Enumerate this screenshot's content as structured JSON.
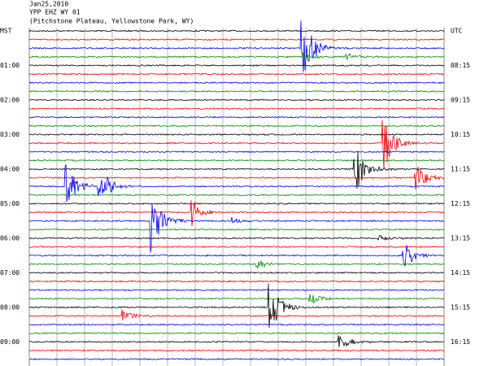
{
  "header": {
    "date": "Jan25,2010",
    "station": "YPP EHZ WY 01",
    "location": "(Pitchstone Plateau, Yellowstone Park, WY)"
  },
  "left_axis": {
    "title": "MST",
    "labels": [
      "01:00",
      "02:00",
      "03:00",
      "04:00",
      "05:00",
      "06:00",
      "07:00",
      "08:00",
      "09:00"
    ]
  },
  "right_axis": {
    "title": "UTC",
    "labels": [
      "08:15",
      "09:15",
      "10:15",
      "11:15",
      "12:15",
      "13:15",
      "14:15",
      "15:15",
      "16:15"
    ]
  }
}
